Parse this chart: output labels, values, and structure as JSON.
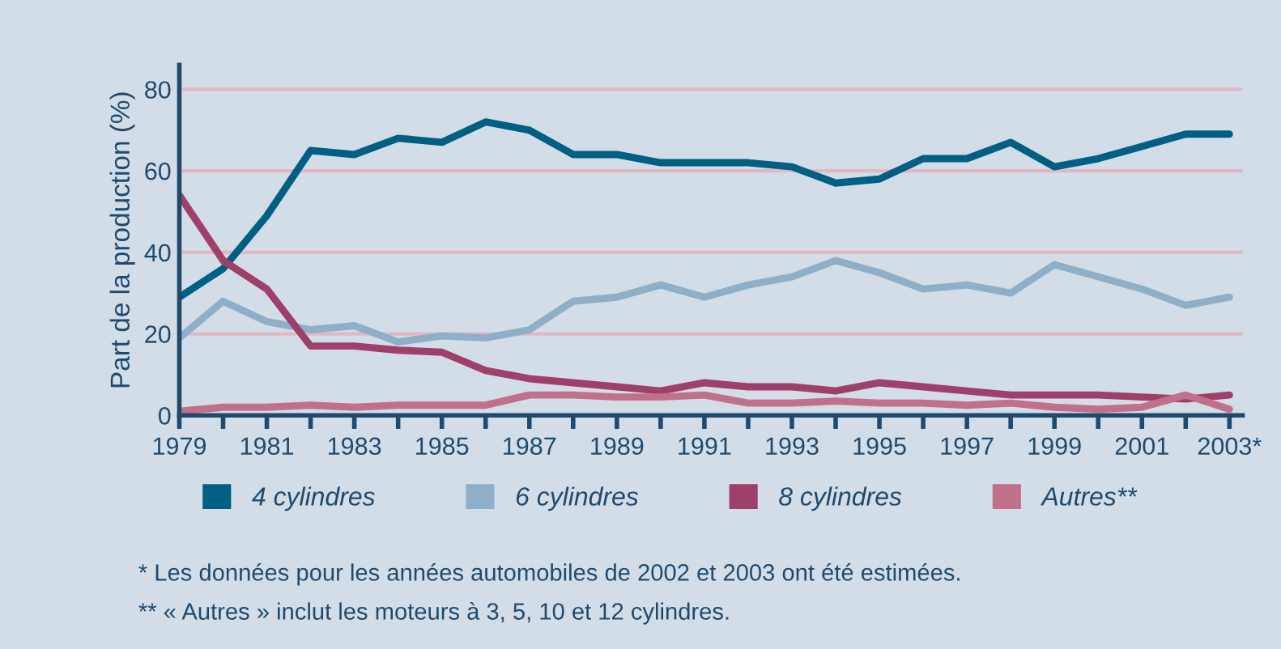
{
  "chart_data": {
    "type": "line",
    "ylabel": "Part de la production (%)",
    "x": [
      1979,
      1980,
      1981,
      1982,
      1983,
      1984,
      1985,
      1986,
      1987,
      1988,
      1989,
      1990,
      1991,
      1992,
      1993,
      1994,
      1995,
      1996,
      1997,
      1998,
      1999,
      2000,
      2001,
      2002,
      2003
    ],
    "series": [
      {
        "name": "4 cylindres",
        "color": "#005f82",
        "values": [
          29,
          36,
          49,
          65,
          64,
          68,
          67,
          72,
          70,
          64,
          64,
          62,
          62,
          62,
          61,
          57,
          58,
          63,
          63,
          67,
          61,
          63,
          66,
          69,
          69
        ]
      },
      {
        "name": "6 cylindres",
        "color": "#8fafc8",
        "values": [
          19,
          28,
          23,
          21,
          22,
          18,
          19.5,
          19,
          21,
          28,
          29,
          32,
          29,
          32,
          34,
          38,
          35,
          31,
          32,
          30,
          37,
          34,
          31,
          27,
          29
        ]
      },
      {
        "name": "8 cylindres",
        "color": "#9e4068",
        "values": [
          54,
          38,
          31,
          17,
          17,
          16,
          15.5,
          11,
          9,
          8,
          7,
          6,
          8,
          7,
          7,
          6,
          8,
          7,
          6,
          5,
          5,
          5,
          4.5,
          4,
          5
        ]
      },
      {
        "name": "Autres**",
        "color": "#c07088",
        "values": [
          1,
          2,
          2,
          2.5,
          2,
          2.5,
          2.5,
          2.5,
          5,
          5,
          4.5,
          4.5,
          5,
          3,
          3,
          3.5,
          3,
          3,
          2.5,
          3,
          2,
          1.5,
          2,
          5,
          1.5
        ]
      }
    ],
    "xlim": [
      1979,
      2003.3
    ],
    "ylim": [
      0,
      86
    ],
    "xticks": [
      1979,
      {
        "value": 1980,
        "label": null
      },
      1981,
      {
        "value": 1982,
        "label": null
      },
      1983,
      {
        "value": 1984,
        "label": null
      },
      1985,
      {
        "value": 1986,
        "label": null
      },
      1987,
      {
        "value": 1988,
        "label": null
      },
      1989,
      {
        "value": 1990,
        "label": null
      },
      1991,
      {
        "value": 1992,
        "label": null
      },
      1993,
      {
        "value": 1994,
        "label": null
      },
      1995,
      {
        "value": 1996,
        "label": null
      },
      1997,
      {
        "value": 1998,
        "label": null
      },
      1999,
      {
        "value": 2000,
        "label": null
      },
      2001,
      {
        "value": 2002,
        "label": null
      },
      {
        "value": 2003,
        "label": "2003*"
      }
    ],
    "yticks": [
      0,
      20,
      40,
      60,
      80
    ],
    "grid": "y",
    "legend": "bottom",
    "marker": "none",
    "line_style": "solid",
    "annotations": [
      "* Les données pour les années automobiles de 2002 et 2003 ont été estimées.",
      "** « Autres » inclut les moteurs à 3, 5, 10 et 12 cylindres."
    ]
  }
}
